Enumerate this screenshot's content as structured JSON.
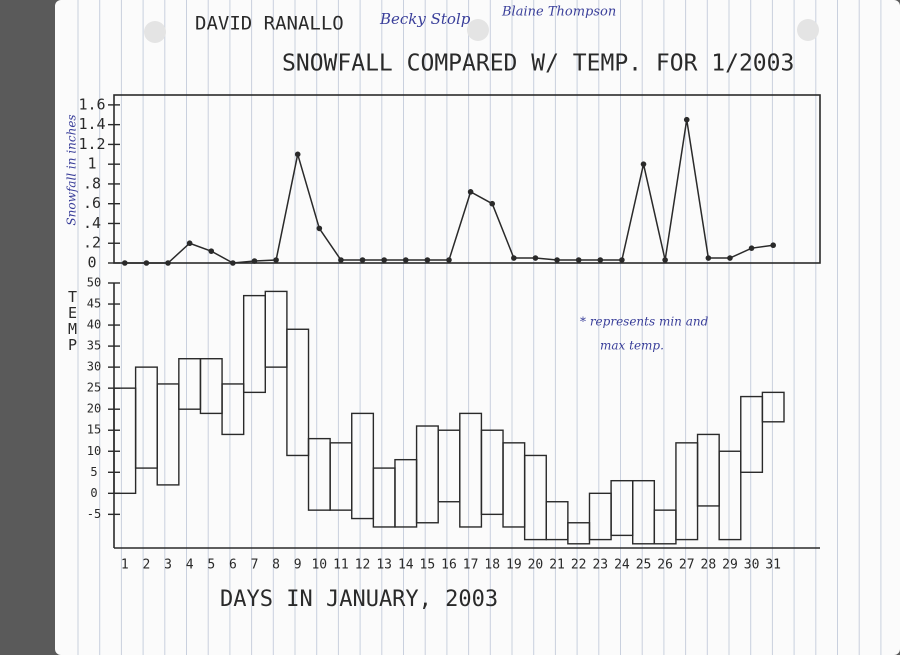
{
  "header": {
    "authors": [
      "DAVID RANALLO",
      "Becky Stolp",
      "Blaine Thompson"
    ],
    "title": "SNOWFALL COMPARED W/ TEMP. FOR 1/2003"
  },
  "chart_data": [
    {
      "type": "line",
      "y_label": "Snowfall in inches",
      "color": "#2a2a2a",
      "values": [
        0,
        0,
        0,
        0.2,
        0.12,
        0,
        0.02,
        0.03,
        1.1,
        0.35,
        0.03,
        0.03,
        0.03,
        0.03,
        0.03,
        0.03,
        0.72,
        0.6,
        0.05,
        0.05,
        0.03,
        0.03,
        0.03,
        0.03,
        1.0,
        0.03,
        1.45,
        0.05,
        0.05,
        0.15,
        0.18
      ],
      "ylim": [
        0,
        1.7
      ],
      "yticks": [
        0,
        {
          "value": 0.2,
          "label": ".2"
        },
        {
          "value": 0.4,
          "label": ".4"
        },
        {
          "value": 0.6,
          "label": ".6"
        },
        {
          "value": 0.8,
          "label": ".8"
        },
        1,
        1.2,
        1.4,
        1.6
      ],
      "grid": false
    },
    {
      "type": "floating-bar",
      "y_label": "TEMP",
      "x_label": "DAYS IN JANUARY, 2003",
      "annotation": [
        "* represents min and",
        "max temp."
      ],
      "categories": [
        "1",
        "2",
        "3",
        "4",
        "5",
        "6",
        "7",
        "8",
        "9",
        "10",
        "11",
        "12",
        "13",
        "14",
        "15",
        "16",
        "17",
        "18",
        "19",
        "20",
        "21",
        "22",
        "23",
        "24",
        "25",
        "26",
        "27",
        "28",
        "29",
        "30",
        "31"
      ],
      "low": [
        0,
        6,
        2,
        20,
        19,
        14,
        24,
        30,
        9,
        -4,
        -4,
        -6,
        -8,
        -8,
        -7,
        -2,
        -8,
        -5,
        -8,
        -11,
        -11,
        -12,
        -11,
        -10,
        -12,
        -12,
        -11,
        -3,
        -11,
        5,
        17
      ],
      "high": [
        25,
        30,
        26,
        32,
        32,
        26,
        47,
        48,
        39,
        13,
        12,
        19,
        6,
        8,
        16,
        15,
        19,
        15,
        12,
        9,
        -2,
        -7,
        0,
        3,
        3,
        -4,
        12,
        14,
        10,
        23,
        24
      ],
      "color": "#2a2a2a",
      "ylim": [
        -13,
        50
      ],
      "yticks": [
        -5,
        0,
        5,
        10,
        15,
        20,
        25,
        30,
        35,
        40,
        45,
        50
      ],
      "grid": false
    }
  ]
}
